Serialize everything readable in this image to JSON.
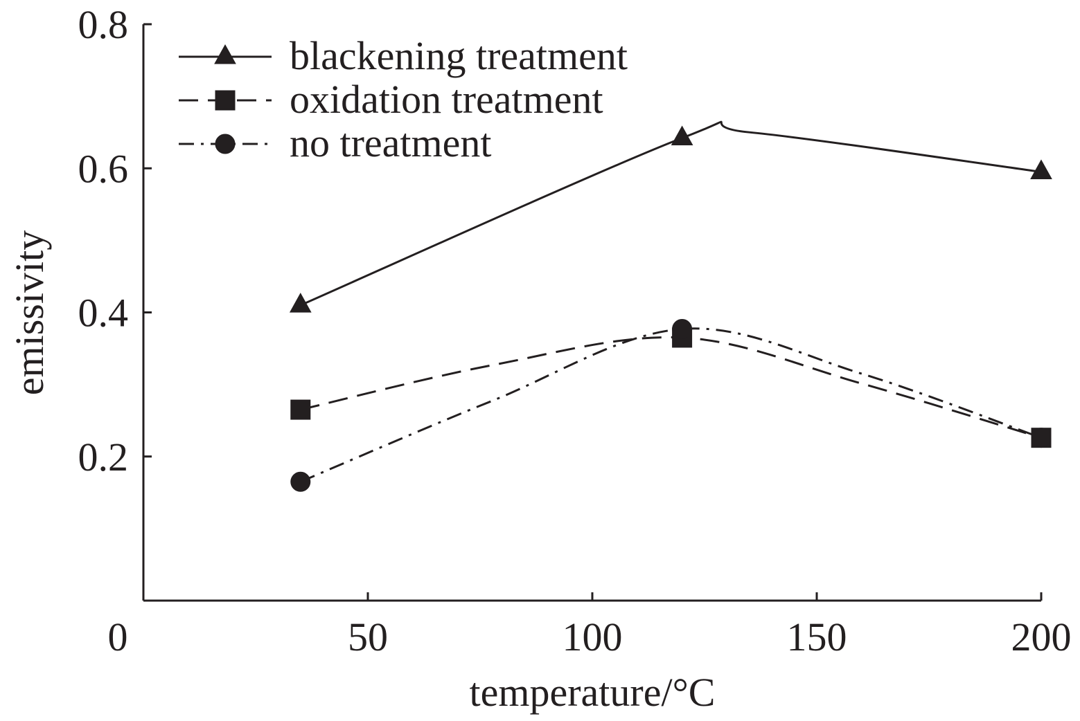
{
  "chart_data": {
    "type": "line",
    "title": "",
    "xlabel": "temperature/°C",
    "ylabel": "emissivity",
    "xlim": [
      0,
      200
    ],
    "ylim": [
      0,
      0.8
    ],
    "xticks": [
      0,
      50,
      100,
      150,
      200
    ],
    "xtick_labels": [
      "0",
      "50",
      "100",
      "150",
      "200"
    ],
    "yticks": [
      0.2,
      0.4,
      0.6,
      0.8
    ],
    "ytick_labels": [
      "0.2",
      "0.4",
      "0.6",
      "0.8"
    ],
    "grid": false,
    "legend_position": "top-left",
    "series": [
      {
        "name": "blackening treatment",
        "marker": "triangle",
        "line_style": "solid",
        "x": [
          35,
          120,
          200
        ],
        "y": [
          0.41,
          0.642,
          0.595
        ],
        "curve_peak": [
          135,
          0.65
        ]
      },
      {
        "name": "oxidation treatment",
        "marker": "square",
        "line_style": "dashed",
        "x": [
          35,
          120,
          200
        ],
        "y": [
          0.265,
          0.365,
          0.226
        ]
      },
      {
        "name": "no treatment",
        "marker": "circle",
        "line_style": "dash-dot",
        "x": [
          35,
          120,
          200
        ],
        "y": [
          0.165,
          0.377,
          0.226
        ]
      }
    ]
  }
}
